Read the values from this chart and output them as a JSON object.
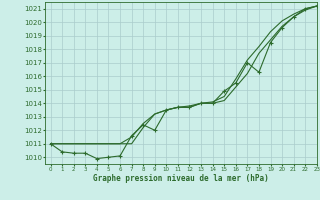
{
  "title": "Graphe pression niveau de la mer (hPa)",
  "bg_color": "#cceee8",
  "grid_color": "#aacccc",
  "line_color": "#2d6b2d",
  "xlim": [
    -0.5,
    23
  ],
  "ylim": [
    1009.5,
    1021.5
  ],
  "xticks": [
    0,
    1,
    2,
    3,
    4,
    5,
    6,
    7,
    8,
    9,
    10,
    11,
    12,
    13,
    14,
    15,
    16,
    17,
    18,
    19,
    20,
    21,
    22,
    23
  ],
  "yticks": [
    1010,
    1011,
    1012,
    1013,
    1014,
    1015,
    1016,
    1017,
    1018,
    1019,
    1020,
    1021
  ],
  "series_marked": [
    1011.0,
    1010.4,
    1010.3,
    1010.3,
    1009.9,
    1010.0,
    1010.1,
    1011.6,
    1012.4,
    1012.0,
    1013.5,
    1013.7,
    1013.7,
    1014.0,
    1014.0,
    1014.9,
    1015.5,
    1017.0,
    1016.3,
    1018.5,
    1019.6,
    1020.4,
    1021.0,
    1021.2
  ],
  "series_smooth1": [
    1011.0,
    1011.0,
    1011.0,
    1011.0,
    1011.0,
    1011.0,
    1011.0,
    1011.0,
    1012.2,
    1013.2,
    1013.5,
    1013.7,
    1013.7,
    1014.0,
    1014.0,
    1014.2,
    1015.2,
    1016.2,
    1017.7,
    1018.7,
    1019.7,
    1020.4,
    1020.9,
    1021.2
  ],
  "series_smooth2": [
    1011.0,
    1011.0,
    1011.0,
    1011.0,
    1011.0,
    1011.0,
    1011.0,
    1011.5,
    1012.5,
    1013.2,
    1013.5,
    1013.7,
    1013.8,
    1014.0,
    1014.1,
    1014.5,
    1015.8,
    1017.2,
    1018.2,
    1019.3,
    1020.1,
    1020.6,
    1021.0,
    1021.2
  ]
}
